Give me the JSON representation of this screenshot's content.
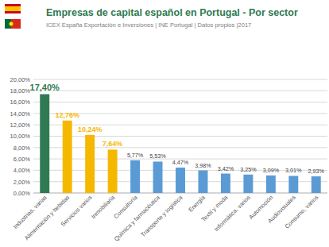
{
  "chart_data": {
    "type": "bar",
    "title": "Empresas de capital español en Portugal - Por sector",
    "subtitle": "ICEX España Exportación e Inversiones | INE Portugal | Datos propios |2017",
    "categories": [
      "Industrias, varias",
      "Alimentación y bebidas",
      "Servicios varios",
      "Inmobiliaria",
      "Consultoría",
      "Química y farmacéutica",
      "Transporte y logística",
      "Energía",
      "Textil y moda",
      "Informática, varios",
      "Automoción",
      "Audiovisuales",
      "Consumo, varios"
    ],
    "values": [
      17.4,
      12.76,
      10.24,
      7.64,
      5.77,
      5.53,
      4.47,
      3.98,
      3.42,
      3.25,
      3.09,
      3.01,
      2.93
    ],
    "value_labels": [
      "17,40%",
      "12,76%",
      "10,24%",
      "7,64%",
      "5,77%",
      "5,53%",
      "4,47%",
      "3,98%",
      "3,42%",
      "3,25%",
      "3,09%",
      "3,01%",
      "2,93%"
    ],
    "colors": [
      "#2f7a52",
      "#f5b800",
      "#f5b800",
      "#f5b800",
      "#5b9bd5",
      "#5b9bd5",
      "#5b9bd5",
      "#5b9bd5",
      "#5b9bd5",
      "#5b9bd5",
      "#5b9bd5",
      "#5b9bd5",
      "#5b9bd5"
    ],
    "ylim": [
      0,
      20
    ],
    "yticks": [
      {
        "value": 0,
        "label": "0,00%"
      },
      {
        "value": 2,
        "label": "2,00%"
      },
      {
        "value": 4,
        "label": "4,00%"
      },
      {
        "value": 6,
        "label": "6,00%"
      },
      {
        "value": 8,
        "label": "8,00%"
      },
      {
        "value": 10,
        "label": "10,00%"
      },
      {
        "value": 12,
        "label": "12,00%"
      },
      {
        "value": 14,
        "label": "14,00%"
      },
      {
        "value": 16,
        "label": "16,00%"
      },
      {
        "value": 18,
        "label": "18,00%"
      },
      {
        "value": 20,
        "label": "20,00%"
      }
    ],
    "grid": true,
    "data_labels": true
  }
}
